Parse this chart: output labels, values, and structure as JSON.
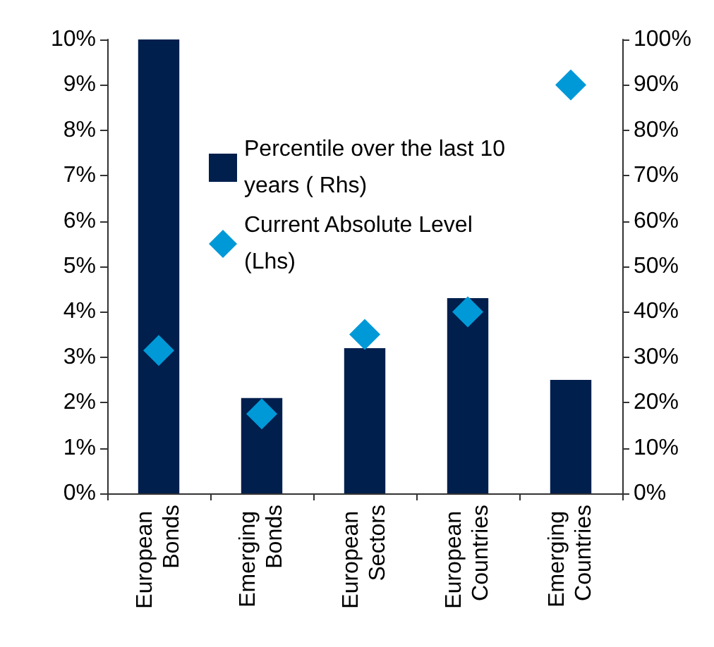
{
  "chart_data": {
    "type": "bar",
    "categories": [
      "European Bonds",
      "Emerging Bonds",
      "European Sectors",
      "European Countries",
      "Emerging Countries"
    ],
    "series": [
      {
        "name": "Percentile over the last 10 years ( Rhs)",
        "axis": "y2",
        "color": "#001f4d",
        "values": [
          100,
          21,
          32,
          43,
          25
        ]
      },
      {
        "name": "Current Absolute Level (Lhs)",
        "type": "scatter",
        "axis": "y",
        "marker": "diamond",
        "color": "#0099d8",
        "values": [
          3.15,
          1.75,
          3.5,
          4.0,
          9.0
        ]
      }
    ],
    "ylim": [
      0,
      10
    ],
    "yticks": [
      {
        "value": 0,
        "label": "0%"
      },
      {
        "value": 1,
        "label": "1%"
      },
      {
        "value": 2,
        "label": "2%"
      },
      {
        "value": 3,
        "label": "3%"
      },
      {
        "value": 4,
        "label": "4%"
      },
      {
        "value": 5,
        "label": "5%"
      },
      {
        "value": 6,
        "label": "6%"
      },
      {
        "value": 7,
        "label": "7%"
      },
      {
        "value": 8,
        "label": "8%"
      },
      {
        "value": 9,
        "label": "9%"
      },
      {
        "value": 10,
        "label": "10%"
      }
    ],
    "y2lim": [
      0,
      100
    ],
    "y2ticks": [
      {
        "value": 0,
        "label": "0%"
      },
      {
        "value": 10,
        "label": "10%"
      },
      {
        "value": 20,
        "label": "20%"
      },
      {
        "value": 30,
        "label": "30%"
      },
      {
        "value": 40,
        "label": "40%"
      },
      {
        "value": 50,
        "label": "50%"
      },
      {
        "value": 60,
        "label": "60%"
      },
      {
        "value": 70,
        "label": "70%"
      },
      {
        "value": 80,
        "label": "80%"
      },
      {
        "value": 90,
        "label": "90%"
      },
      {
        "value": 100,
        "label": "100%"
      }
    ],
    "grid": false,
    "legend": "top"
  }
}
